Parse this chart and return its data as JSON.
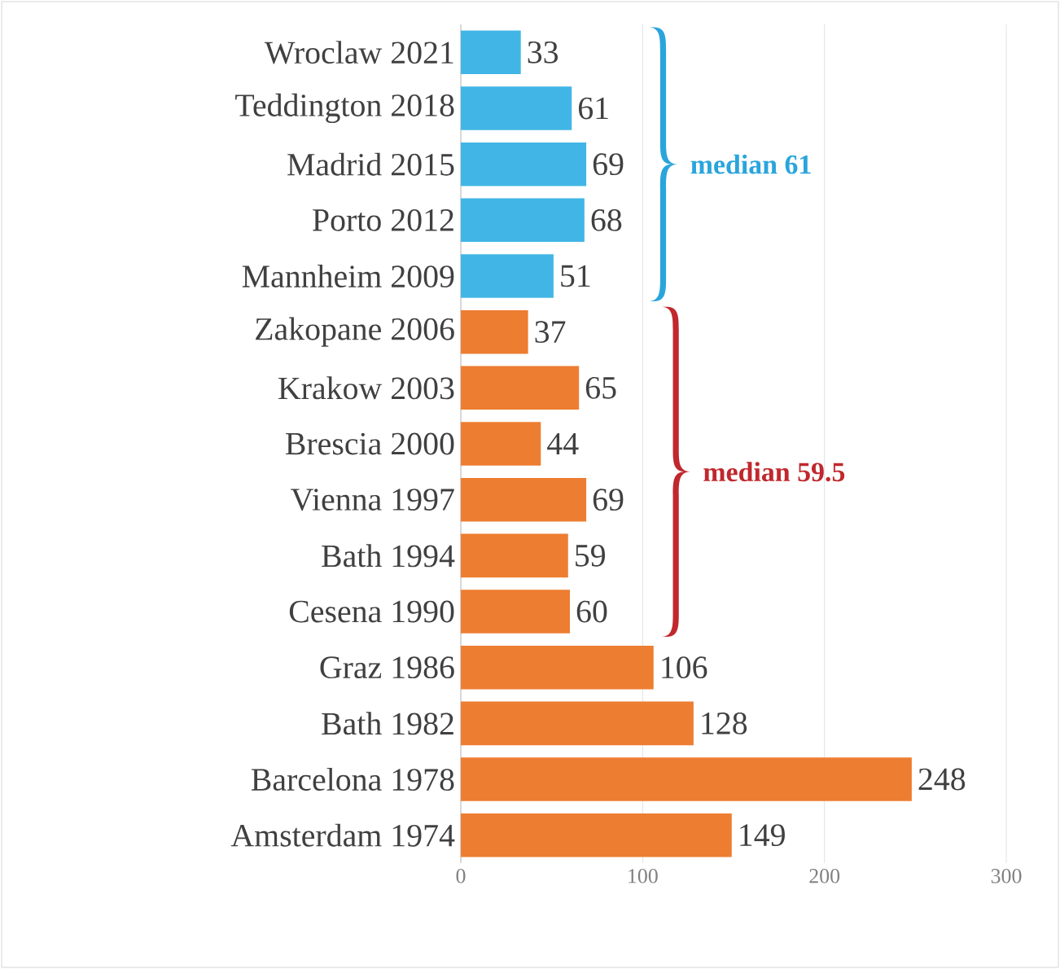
{
  "chart_data": {
    "type": "bar",
    "orientation": "horizontal",
    "categories": [
      "Wroclaw 2021",
      "Teddington 2018",
      "Madrid 2015",
      "Porto 2012",
      "Mannheim 2009",
      "Zakopane 2006",
      "Krakow 2003",
      "Brescia 2000",
      "Vienna 1997",
      "Bath 1994",
      "Cesena 1990",
      "Graz 1986",
      "Bath 1982",
      "Barcelona  1978",
      "Amsterdam 1974"
    ],
    "values": [
      33,
      61,
      69,
      68,
      51,
      37,
      65,
      44,
      69,
      59,
      60,
      106,
      128,
      248,
      149
    ],
    "colors": [
      "#41b6e6",
      "#41b6e6",
      "#41b6e6",
      "#41b6e6",
      "#41b6e6",
      "#ed7d31",
      "#ed7d31",
      "#ed7d31",
      "#ed7d31",
      "#ed7d31",
      "#ed7d31",
      "#ed7d31",
      "#ed7d31",
      "#ed7d31",
      "#ed7d31"
    ],
    "xlim": [
      0,
      300
    ],
    "xticks": [
      0,
      100,
      200,
      300
    ],
    "grid": "x",
    "data_labels": true,
    "annotations": [
      "median 61",
      "median 59.5"
    ]
  }
}
